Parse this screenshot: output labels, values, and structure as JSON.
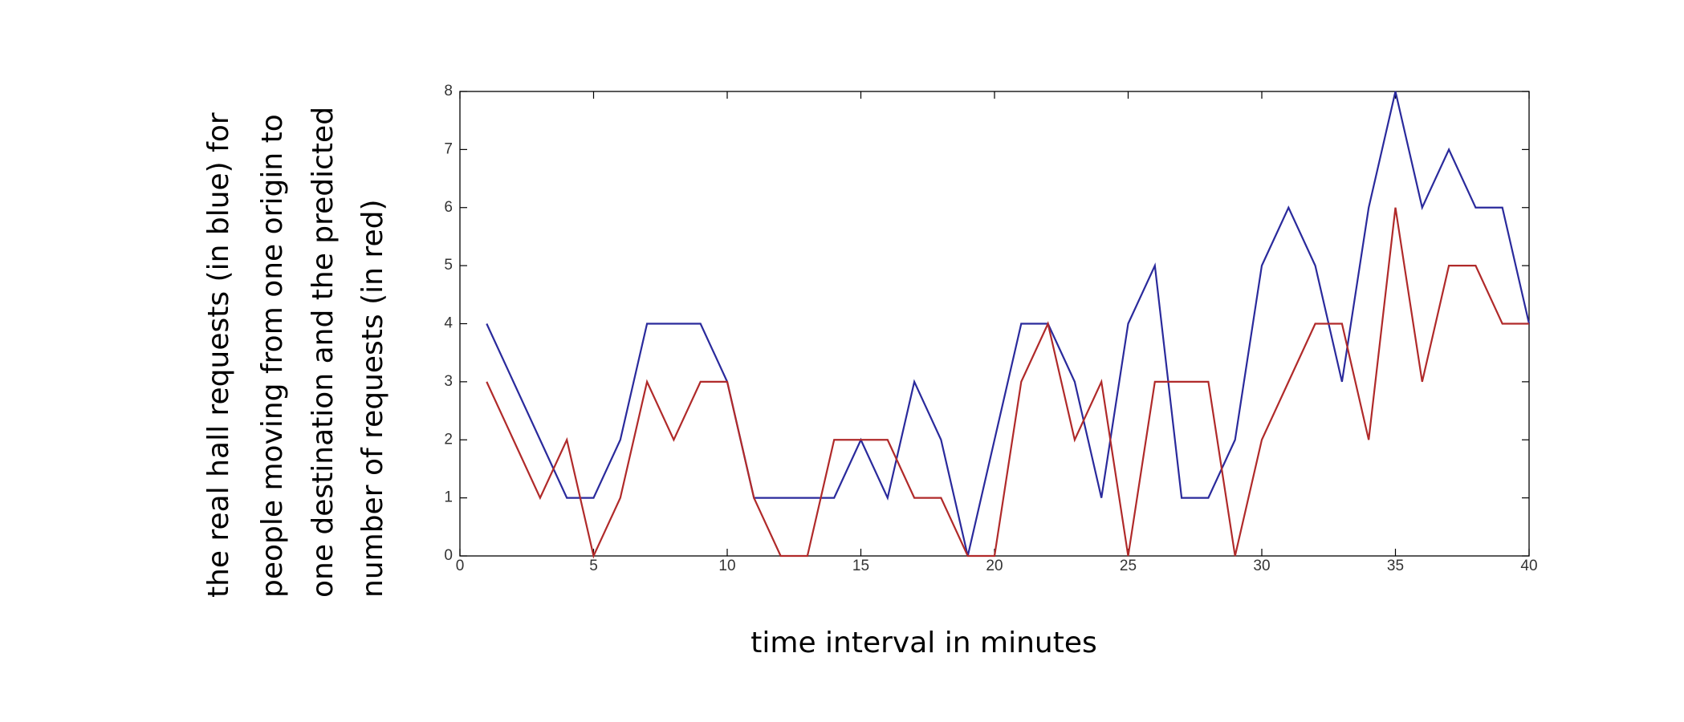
{
  "chart_data": {
    "type": "line",
    "xlabel": "time interval in minutes",
    "ylabel": [
      "the real hall requests (in blue) for",
      "people moving  from one origin to",
      "one destination and the predicted",
      "number of requests (in red)"
    ],
    "x": [
      1,
      2,
      3,
      4,
      5,
      6,
      7,
      8,
      9,
      10,
      11,
      12,
      13,
      14,
      15,
      16,
      17,
      18,
      19,
      20,
      21,
      22,
      23,
      24,
      25,
      26,
      27,
      28,
      29,
      30,
      31,
      32,
      33,
      34,
      35,
      36,
      37,
      38,
      39,
      40
    ],
    "series": [
      {
        "color": "#2a2a9c",
        "values": [
          4,
          3,
          2,
          1,
          1,
          2,
          4,
          4,
          4,
          3,
          1,
          1,
          1,
          1,
          2,
          1,
          3,
          2,
          0,
          2,
          4,
          4,
          3,
          1,
          4,
          5,
          1,
          1,
          2,
          5,
          6,
          5,
          3,
          6,
          8,
          6,
          7,
          6,
          6,
          4
        ]
      },
      {
        "color": "#b02a2a",
        "values": [
          3,
          2,
          1,
          2,
          0,
          1,
          3,
          2,
          3,
          3,
          1,
          0,
          0,
          2,
          2,
          2,
          1,
          1,
          0,
          0,
          3,
          4,
          2,
          3,
          0,
          3,
          3,
          3,
          0,
          2,
          3,
          4,
          4,
          2,
          6,
          3,
          5,
          5,
          4,
          4
        ]
      }
    ],
    "xlim": [
      0,
      40
    ],
    "xticks": [
      0,
      5,
      10,
      15,
      20,
      25,
      30,
      35,
      40
    ],
    "ylim": [
      0,
      8
    ],
    "yticks": [
      0,
      1,
      2,
      3,
      4,
      5,
      6,
      7,
      8
    ]
  }
}
